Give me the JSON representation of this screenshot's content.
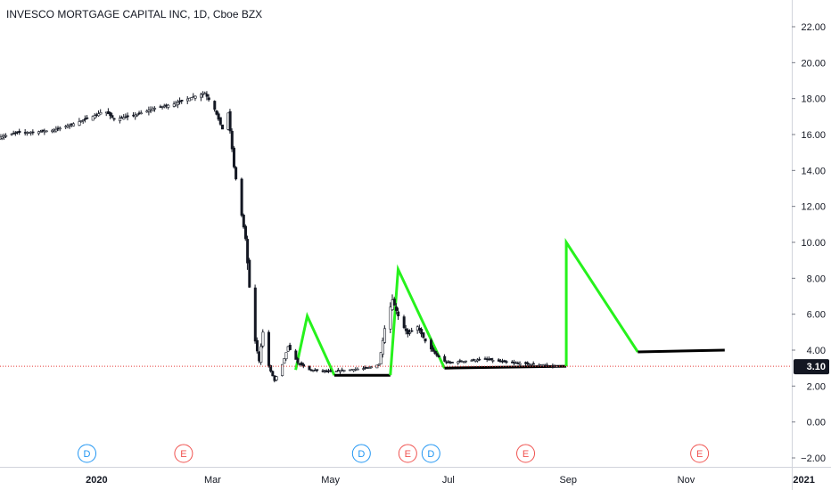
{
  "chart_title": "INVESCO MORTGAGE CAPITAL INC, 1D, Cboe BZX",
  "colors": {
    "background": "#ffffff",
    "candle": "#131722",
    "drawing_green": "#26f21c",
    "drawing_black": "#000000",
    "price_line": "#e53935",
    "price_label_bg": "#131722",
    "dividend": "#2196f3",
    "earnings": "#f05350",
    "axis_text": "#131722",
    "axis_line": "#d1d4dc"
  },
  "chart_data": {
    "type": "candlestick",
    "title": "INVESCO MORTGAGE CAPITAL INC, 1D, Cboe BZX",
    "x_tick_labels": [
      "2020",
      "Mar",
      "May",
      "Jul",
      "Sep",
      "Nov",
      "2021"
    ],
    "x_tick_dates": [
      "2020-01-01",
      "2020-03-01",
      "2020-05-01",
      "2020-07-01",
      "2020-09-01",
      "2020-11-01",
      "2021-01-01"
    ],
    "x_range": [
      "2019-11-12",
      "2021-01-15"
    ],
    "y_tick_labels": [
      "22.00",
      "20.00",
      "18.00",
      "16.00",
      "14.00",
      "12.00",
      "10.00",
      "8.00",
      "6.00",
      "4.00",
      "2.00",
      "0.00",
      "−2.00"
    ],
    "ylim": [
      -2.6,
      23.5
    ],
    "last_price": 3.1,
    "last_price_label": "3.10",
    "price_path": [
      [
        "2019-11-12",
        15.85
      ],
      [
        "2019-11-20",
        16.1
      ],
      [
        "2019-12-01",
        16.15
      ],
      [
        "2019-12-10",
        16.25
      ],
      [
        "2019-12-20",
        16.6
      ],
      [
        "2020-01-01",
        17.1
      ],
      [
        "2020-01-05",
        17.35
      ],
      [
        "2020-01-10",
        16.85
      ],
      [
        "2020-01-20",
        17.05
      ],
      [
        "2020-02-01",
        17.5
      ],
      [
        "2020-02-10",
        17.7
      ],
      [
        "2020-02-20",
        18.1
      ],
      [
        "2020-02-26",
        18.3
      ],
      [
        "2020-03-02",
        17.4
      ],
      [
        "2020-03-06",
        16.3
      ],
      [
        "2020-03-09",
        17.2
      ],
      [
        "2020-03-12",
        14.2
      ],
      [
        "2020-03-16",
        11.5
      ],
      [
        "2020-03-18",
        10.2
      ],
      [
        "2020-03-20",
        7.5
      ],
      [
        "2020-03-23",
        4.5
      ],
      [
        "2020-03-25",
        3.4
      ],
      [
        "2020-03-27",
        5.0
      ],
      [
        "2020-03-30",
        3.1
      ],
      [
        "2020-04-02",
        2.3
      ],
      [
        "2020-04-06",
        3.2
      ],
      [
        "2020-04-09",
        4.2
      ],
      [
        "2020-04-14",
        3.3
      ],
      [
        "2020-04-20",
        2.9
      ],
      [
        "2020-05-01",
        2.8
      ],
      [
        "2020-05-10",
        2.9
      ],
      [
        "2020-05-20",
        3.0
      ],
      [
        "2020-05-26",
        3.2
      ],
      [
        "2020-05-29",
        5.2
      ],
      [
        "2020-06-02",
        6.8
      ],
      [
        "2020-06-06",
        5.6
      ],
      [
        "2020-06-10",
        4.9
      ],
      [
        "2020-06-15",
        5.3
      ],
      [
        "2020-06-20",
        4.3
      ],
      [
        "2020-06-25",
        3.7
      ],
      [
        "2020-06-30",
        3.3
      ],
      [
        "2020-07-10",
        3.4
      ],
      [
        "2020-07-20",
        3.5
      ],
      [
        "2020-08-01",
        3.3
      ],
      [
        "2020-08-15",
        3.2
      ],
      [
        "2020-08-26",
        3.1
      ]
    ],
    "drawings": [
      {
        "color": "green",
        "points": [
          [
            "2020-04-13",
            2.9
          ],
          [
            "2020-04-19",
            5.9
          ],
          [
            "2020-05-03",
            2.6
          ]
        ]
      },
      {
        "color": "black",
        "points": [
          [
            "2020-05-03",
            2.6
          ],
          [
            "2020-06-01",
            2.6
          ]
        ]
      },
      {
        "color": "green",
        "points": [
          [
            "2020-06-01",
            2.6
          ],
          [
            "2020-06-05",
            8.5
          ],
          [
            "2020-06-29",
            3.0
          ]
        ]
      },
      {
        "color": "black",
        "points": [
          [
            "2020-06-29",
            3.0
          ],
          [
            "2020-08-31",
            3.1
          ]
        ]
      },
      {
        "color": "green",
        "points": [
          [
            "2020-08-31",
            3.1
          ],
          [
            "2020-08-31",
            10.0
          ],
          [
            "2020-10-07",
            3.9
          ]
        ]
      },
      {
        "color": "black",
        "points": [
          [
            "2020-10-07",
            3.9
          ],
          [
            "2020-11-21",
            4.0
          ]
        ]
      }
    ],
    "events": [
      {
        "type": "D",
        "date": "2019-12-27",
        "label": "D"
      },
      {
        "type": "E",
        "date": "2020-02-15",
        "label": "E"
      },
      {
        "type": "D",
        "date": "2020-05-17",
        "label": "D"
      },
      {
        "type": "E",
        "date": "2020-06-10",
        "label": "E"
      },
      {
        "type": "D",
        "date": "2020-06-22",
        "label": "D"
      },
      {
        "type": "E",
        "date": "2020-08-10",
        "label": "E"
      },
      {
        "type": "E",
        "date": "2020-11-08",
        "label": "E"
      }
    ]
  }
}
